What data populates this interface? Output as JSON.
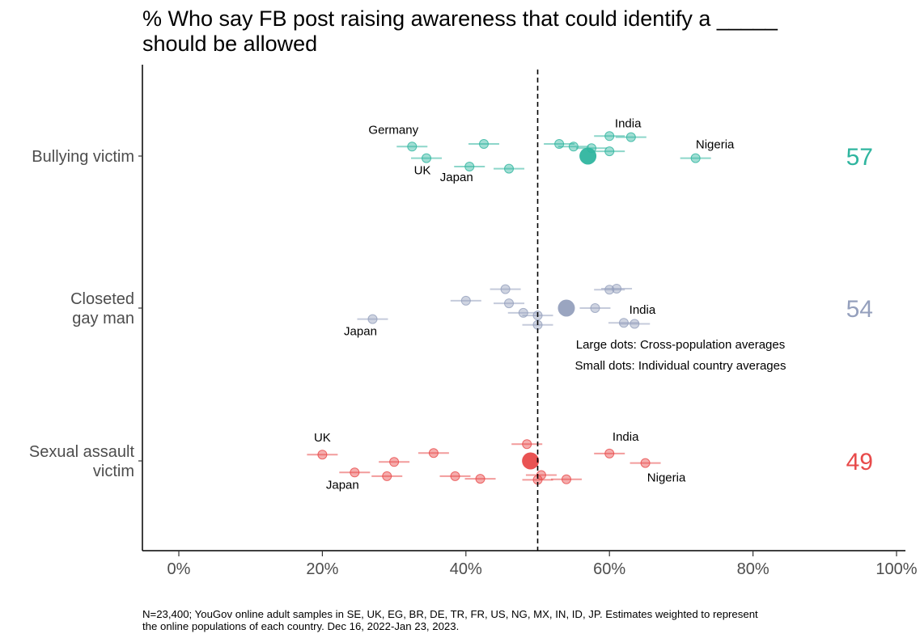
{
  "title_lines": [
    "% Who say FB post raising awareness that could identify a _____",
    "should be allowed"
  ],
  "footnote_lines": [
    "N=23,400; YouGov online adult samples in SE, UK, EG, BR, DE, TR, FR, US, NG, MX, IN, ID, JP. Estimates weighted to represent",
    "the online populations of each country. Dec 16, 2022-Jan 23, 2023."
  ],
  "chart_data": {
    "type": "scatter",
    "xlim": [
      0,
      100
    ],
    "x_ticks": [
      "0%",
      "20%",
      "40%",
      "60%",
      "80%",
      "100%"
    ],
    "x_tick_values": [
      0,
      20,
      40,
      60,
      80,
      100
    ],
    "reference_line": 50,
    "annotations": [
      "Large dots: Cross-population averages",
      "Small dots: Individual country averages"
    ],
    "groups": [
      {
        "label_lines": [
          "Bullying victim"
        ],
        "color": "#2fb59f",
        "average": 57,
        "average_label": "57",
        "countries": [
          {
            "x": 32.5,
            "offset": 0.9,
            "label": "Germany"
          },
          {
            "x": 42.5,
            "offset": 1.15
          },
          {
            "x": 34.5,
            "offset": -0.2,
            "label": "UK"
          },
          {
            "x": 40.5,
            "offset": -1.0,
            "label": "Japan"
          },
          {
            "x": 46,
            "offset": -1.2
          },
          {
            "x": 53,
            "offset": 1.15
          },
          {
            "x": 55,
            "offset": 0.9
          },
          {
            "x": 57.5,
            "offset": 0.75
          },
          {
            "x": 60,
            "offset": 1.9,
            "label": "India"
          },
          {
            "x": 63,
            "offset": 1.8
          },
          {
            "x": 60,
            "offset": 0.45
          },
          {
            "x": 72,
            "offset": -0.2,
            "label": "Nigeria"
          }
        ]
      },
      {
        "label_lines": [
          "Closeted",
          "gay man"
        ],
        "color": "#95a0bd",
        "average": 54,
        "average_label": "54",
        "countries": [
          {
            "x": 45.5,
            "offset": 1.8
          },
          {
            "x": 60,
            "offset": 1.75
          },
          {
            "x": 61,
            "offset": 1.85
          },
          {
            "x": 40,
            "offset": 0.7
          },
          {
            "x": 46,
            "offset": 0.45
          },
          {
            "x": 58,
            "offset": 0
          },
          {
            "x": 48,
            "offset": -0.45
          },
          {
            "x": 50,
            "offset": -0.7
          },
          {
            "x": 27,
            "offset": -1.05,
            "label": "Japan"
          },
          {
            "x": 62,
            "offset": -1.4,
            "label": "India"
          },
          {
            "x": 63.5,
            "offset": -1.5
          },
          {
            "x": 50,
            "offset": -1.6
          }
        ]
      },
      {
        "label_lines": [
          "Sexual assault",
          "victim"
        ],
        "color": "#e84a4a",
        "average": 49,
        "average_label": "49",
        "countries": [
          {
            "x": 48.5,
            "offset": 1.6
          },
          {
            "x": 20,
            "offset": 0.6,
            "label": "UK"
          },
          {
            "x": 35.5,
            "offset": 0.75
          },
          {
            "x": 60,
            "offset": 0.7,
            "label": "India"
          },
          {
            "x": 30,
            "offset": -0.1
          },
          {
            "x": 65,
            "offset": -0.2,
            "label": "Nigeria"
          },
          {
            "x": 24.5,
            "offset": -1.1,
            "label": "Japan"
          },
          {
            "x": 29,
            "offset": -1.45
          },
          {
            "x": 38.5,
            "offset": -1.45
          },
          {
            "x": 42,
            "offset": -1.7
          },
          {
            "x": 50.5,
            "offset": -1.35
          },
          {
            "x": 50,
            "offset": -1.8
          },
          {
            "x": 54,
            "offset": -1.75
          }
        ]
      }
    ]
  }
}
